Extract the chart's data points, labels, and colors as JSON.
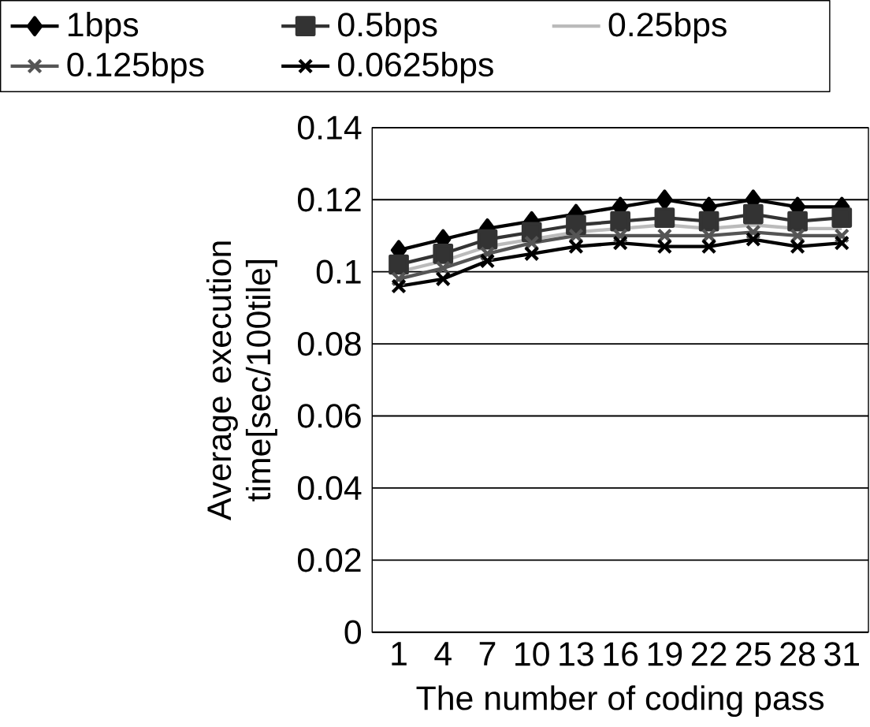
{
  "chart_data": {
    "type": "line",
    "xlabel": "The number of coding pass",
    "ylabel": "Average execution time[sec/100tile]",
    "categories": [
      "1",
      "4",
      "7",
      "10",
      "13",
      "16",
      "19",
      "22",
      "25",
      "28",
      "31"
    ],
    "ylim": [
      0,
      0.14
    ],
    "yticks": [
      0,
      0.02,
      0.04,
      0.06,
      0.08,
      0.1,
      0.12,
      0.14
    ],
    "grid": "y",
    "legend": "top",
    "series": [
      {
        "name": "1bps",
        "color": "#000000",
        "marker": "diamond",
        "values": [
          0.106,
          0.109,
          0.112,
          0.114,
          0.116,
          0.118,
          0.12,
          0.118,
          0.12,
          0.118,
          0.118
        ]
      },
      {
        "name": "0.5bps",
        "color": "#333333",
        "marker": "square",
        "values": [
          0.102,
          0.105,
          0.109,
          0.111,
          0.113,
          0.114,
          0.115,
          0.114,
          0.116,
          0.114,
          0.115
        ]
      },
      {
        "name": "0.25bps",
        "color": "#bbbbbb",
        "marker": "none",
        "values": [
          0.1,
          0.103,
          0.107,
          0.109,
          0.111,
          0.112,
          0.113,
          0.112,
          0.113,
          0.112,
          0.112
        ]
      },
      {
        "name": "0.125bps",
        "color": "#555555",
        "marker": "cross",
        "values": [
          0.098,
          0.101,
          0.105,
          0.108,
          0.11,
          0.11,
          0.11,
          0.11,
          0.111,
          0.11,
          0.11
        ]
      },
      {
        "name": "0.0625bps",
        "color": "#000000",
        "marker": "cross",
        "values": [
          0.096,
          0.098,
          0.103,
          0.105,
          0.107,
          0.108,
          0.107,
          0.107,
          0.109,
          0.107,
          0.108
        ]
      }
    ]
  }
}
